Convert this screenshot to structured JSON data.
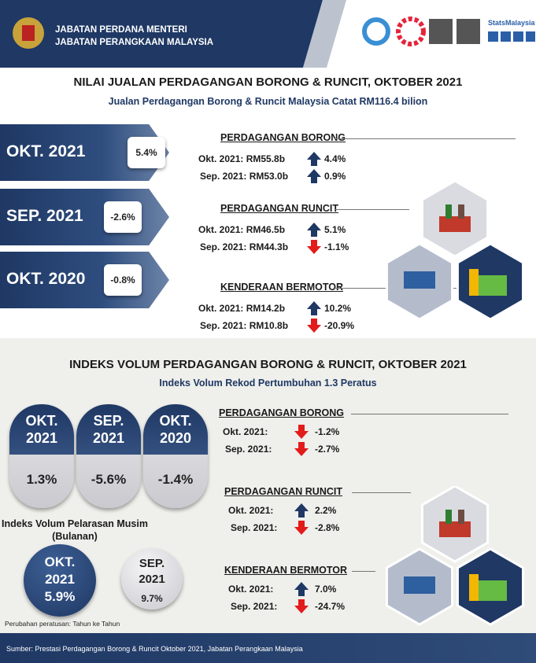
{
  "header": {
    "org": [
      "JABATAN PERDANA MENTERI",
      "JABATAN PERANGKAAN MALAYSIA"
    ],
    "brand": "StatsMalaysia"
  },
  "section1": {
    "title": "NILAI JUALAN PERDAGANGAN BORONG & RUNCIT, OKTOBER 2021",
    "subtitle": "Jualan Perdagangan Borong & Runcit Malaysia Catat RM116.4 bilion",
    "periods": [
      {
        "label": "OKT. 2021",
        "value": "5.4%"
      },
      {
        "label": "SEP. 2021",
        "value": "-2.6%"
      },
      {
        "label": "OKT. 2020",
        "value": "-0.8%"
      }
    ],
    "sectors": [
      {
        "name": "PERDAGANGAN BORONG",
        "rows": [
          {
            "label": "Okt. 2021: RM55.8b",
            "change": "4.4%"
          },
          {
            "label": "Sep. 2021: RM53.0b",
            "change": "0.9%"
          }
        ]
      },
      {
        "name": "PERDAGANGAN RUNCIT",
        "rows": [
          {
            "label": "Okt. 2021: RM46.5b",
            "change": "5.1%"
          },
          {
            "label": "Sep. 2021: RM44.3b",
            "change": "-1.1%"
          }
        ]
      },
      {
        "name": "KENDERAAN BERMOTOR",
        "rows": [
          {
            "label": "Okt. 2021: RM14.2b",
            "change": "10.2%"
          },
          {
            "label": "Sep. 2021: RM10.8b",
            "change": "-20.9%"
          }
        ]
      }
    ]
  },
  "section2": {
    "title": "INDEKS VOLUM PERDAGANGAN BORONG & RUNCIT, OKTOBER 2021",
    "subtitle": "Indeks Volum Rekod Pertumbuhan 1.3 Peratus",
    "periods": [
      {
        "label": [
          "OKT.",
          "2021"
        ],
        "value": "1.3%"
      },
      {
        "label": [
          "SEP.",
          "2021"
        ],
        "value": "-5.6%"
      },
      {
        "label": [
          "OKT.",
          "2020"
        ],
        "value": "-1.4%"
      }
    ],
    "seasonal": {
      "title": [
        "Indeks Volum Pelarasan Musim",
        "(Bulanan)"
      ],
      "items": [
        {
          "label": [
            "OKT.",
            "2021"
          ],
          "value": "5.9%"
        },
        {
          "label": [
            "SEP.",
            "2021"
          ],
          "value": "9.7%"
        }
      ]
    },
    "sectors": [
      {
        "name": "PERDAGANGAN BORONG",
        "rows": [
          {
            "label": "Okt. 2021:",
            "change": "-1.2%"
          },
          {
            "label": "Sep. 2021:",
            "change": "-2.7%"
          }
        ]
      },
      {
        "name": "PERDAGANGAN RUNCIT",
        "rows": [
          {
            "label": "Okt. 2021:",
            "change": "2.2%"
          },
          {
            "label": "Sep. 2021:",
            "change": "-2.8%"
          }
        ]
      },
      {
        "name": "KENDERAAN BERMOTOR",
        "rows": [
          {
            "label": "Okt. 2021:",
            "change": "7.0%"
          },
          {
            "label": "Sep. 2021:",
            "change": "-24.7%"
          }
        ]
      }
    ],
    "note": "Perubahan peratusan: Tahun ke Tahun"
  },
  "footer": {
    "source": "Sumber: Prestasi Perdagangan Borong & Runcit Oktober 2021, Jabatan Perangkaan Malaysia"
  }
}
